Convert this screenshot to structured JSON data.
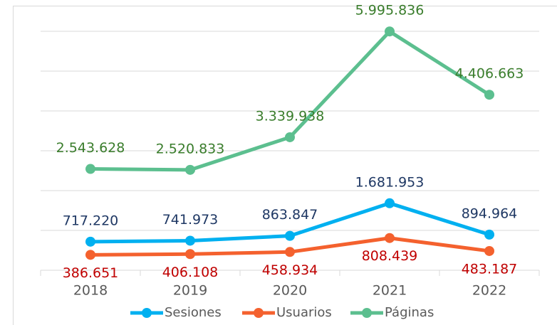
{
  "chart_data": {
    "type": "line",
    "categories": [
      "2018",
      "2019",
      "2020",
      "2021",
      "2022"
    ],
    "series": [
      {
        "name": "Sesiones",
        "color": "#00b0f0",
        "label_color": "#1f3864",
        "label_position": "above",
        "values": [
          717220,
          741973,
          863847,
          1681953,
          894964
        ],
        "value_labels": [
          "717.220",
          "741.973",
          "863.847",
          "1.681.953",
          "894.964"
        ]
      },
      {
        "name": "Usuarios",
        "color": "#f4612e",
        "label_color": "#c00000",
        "label_position": "below",
        "values": [
          386651,
          406108,
          458934,
          808439,
          483187
        ],
        "value_labels": [
          "386.651",
          "406.108",
          "458.934",
          "808.439",
          "483.187"
        ]
      },
      {
        "name": "Páginas",
        "color": "#5cbf8f",
        "label_color": "#3a7d2c",
        "label_position": "above",
        "values": [
          2543628,
          2520833,
          3339938,
          5995836,
          4406663
        ],
        "value_labels": [
          "2.543.628",
          "2.520.833",
          "3.339.938",
          "5.995.836",
          "4.406.663"
        ]
      }
    ],
    "ylim": [
      0,
      6000000
    ],
    "yticks": [
      0,
      1000000,
      2000000,
      3000000,
      4000000,
      5000000,
      6000000
    ],
    "grid": true,
    "legend": "bottom"
  }
}
